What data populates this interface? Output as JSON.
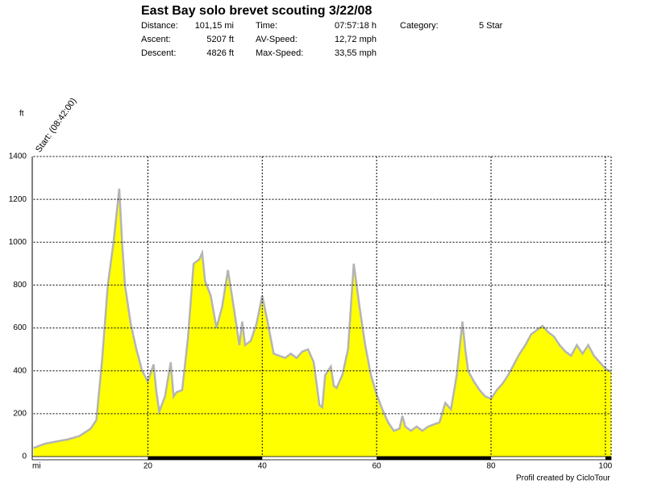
{
  "chart_data": {
    "type": "area",
    "title": "East Bay solo  brevet scouting 3/22/08",
    "stats": [
      [
        {
          "label": "Distance:",
          "value": "101,15 mi"
        },
        {
          "label": "Time:",
          "value": "07:57:18 h"
        },
        {
          "label": "Category:",
          "value": "5 Star"
        }
      ],
      [
        {
          "label": "Ascent:",
          "value": "5207 ft"
        },
        {
          "label": "AV-Speed:",
          "value": "12,72 mph"
        }
      ],
      [
        {
          "label": "Descent:",
          "value": "4826 ft"
        },
        {
          "label": "Max-Speed:",
          "value": "33,55 mph"
        }
      ]
    ],
    "y_label": "ft",
    "x_label": "mi",
    "annotation": "Start: (08:42:00)",
    "footer": "Profil created by CicloTour",
    "fill_color": "#ffff00",
    "line_color": "#b4b4b4",
    "grid": true,
    "xlim": [
      0,
      101
    ],
    "xticks": [
      20,
      40,
      60,
      80,
      100
    ],
    "ylim": [
      0,
      1400
    ],
    "yticks": [
      0,
      200,
      400,
      600,
      800,
      1000,
      1200,
      1400
    ],
    "x": [
      0,
      2,
      4,
      6,
      8,
      10,
      11,
      12,
      13,
      14,
      15,
      15.5,
      16,
      17,
      18,
      19,
      20,
      21,
      21.5,
      22,
      23,
      24,
      24.5,
      25,
      26,
      27,
      28,
      29,
      29.5,
      30,
      31,
      32,
      33,
      34,
      35,
      36,
      36.5,
      37,
      38,
      39,
      40,
      41,
      42,
      43,
      44,
      45,
      46,
      47,
      48,
      49,
      50,
      50.5,
      51,
      52,
      52.5,
      53,
      54,
      55,
      56,
      57,
      58,
      59,
      60,
      61,
      62,
      63,
      64,
      64.5,
      65,
      66,
      67,
      68,
      69,
      70,
      71,
      72,
      73,
      74,
      75,
      75.5,
      76,
      77,
      78,
      79,
      80,
      81,
      82,
      83,
      84,
      85,
      86,
      87,
      88,
      89,
      90,
      91,
      92,
      93,
      94,
      95,
      96,
      97,
      98,
      99,
      100,
      101
    ],
    "values": [
      40,
      60,
      70,
      80,
      95,
      130,
      170,
      450,
      800,
      1000,
      1250,
      1000,
      800,
      620,
      500,
      400,
      350,
      430,
      300,
      210,
      280,
      440,
      280,
      300,
      310,
      550,
      900,
      920,
      950,
      820,
      750,
      600,
      700,
      870,
      700,
      520,
      630,
      520,
      540,
      620,
      750,
      620,
      480,
      470,
      460,
      480,
      460,
      490,
      500,
      440,
      240,
      230,
      380,
      420,
      330,
      320,
      380,
      500,
      900,
      700,
      520,
      380,
      290,
      220,
      160,
      120,
      130,
      190,
      140,
      120,
      140,
      120,
      140,
      150,
      160,
      250,
      220,
      380,
      630,
      500,
      400,
      350,
      310,
      280,
      270,
      310,
      340,
      380,
      430,
      480,
      520,
      570,
      590,
      610,
      580,
      560,
      520,
      490,
      470,
      520,
      480,
      520,
      470,
      440,
      410,
      395
    ]
  }
}
